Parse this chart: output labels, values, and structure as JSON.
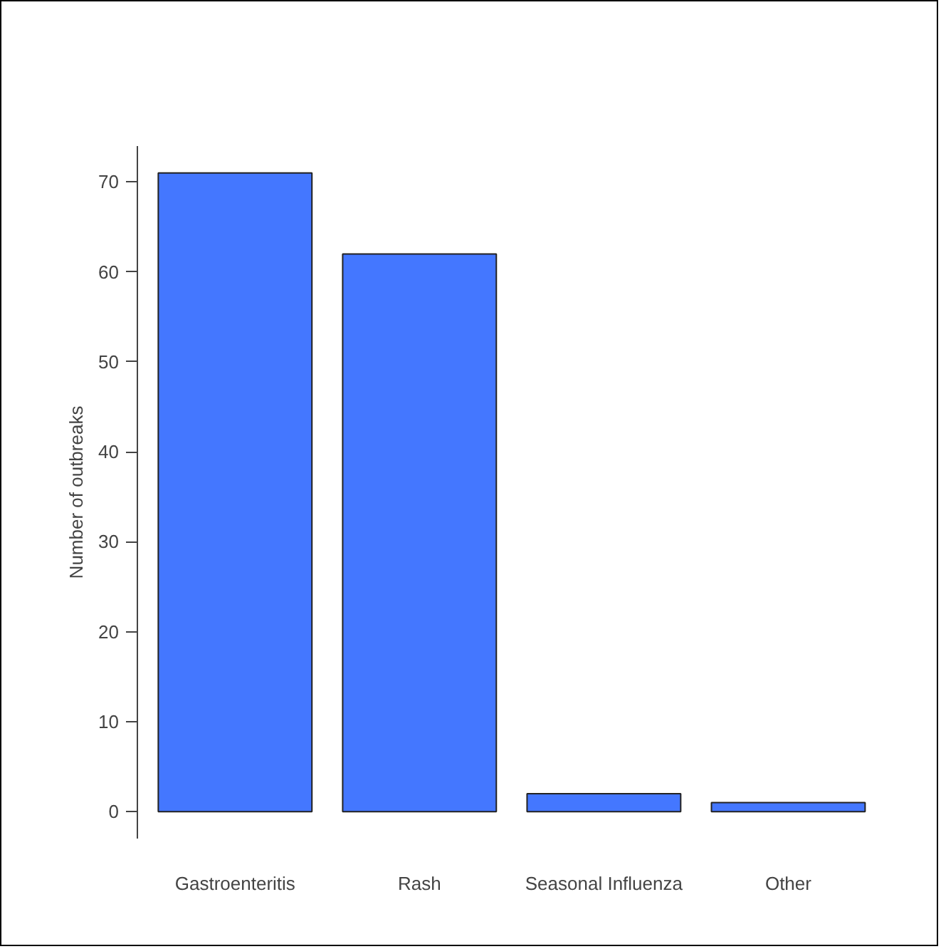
{
  "chart_data": {
    "type": "bar",
    "ylabel": "Number of outbreaks",
    "categories": [
      "Gastroenteritis",
      "Rash",
      "Seasonal Influenza",
      "Other"
    ],
    "values": [
      71,
      62,
      2,
      1
    ],
    "color": "#4477ff",
    "ylim": [
      -3,
      74
    ],
    "yticks": [
      0,
      10,
      20,
      30,
      40,
      50,
      60,
      70
    ],
    "grid": false
  }
}
